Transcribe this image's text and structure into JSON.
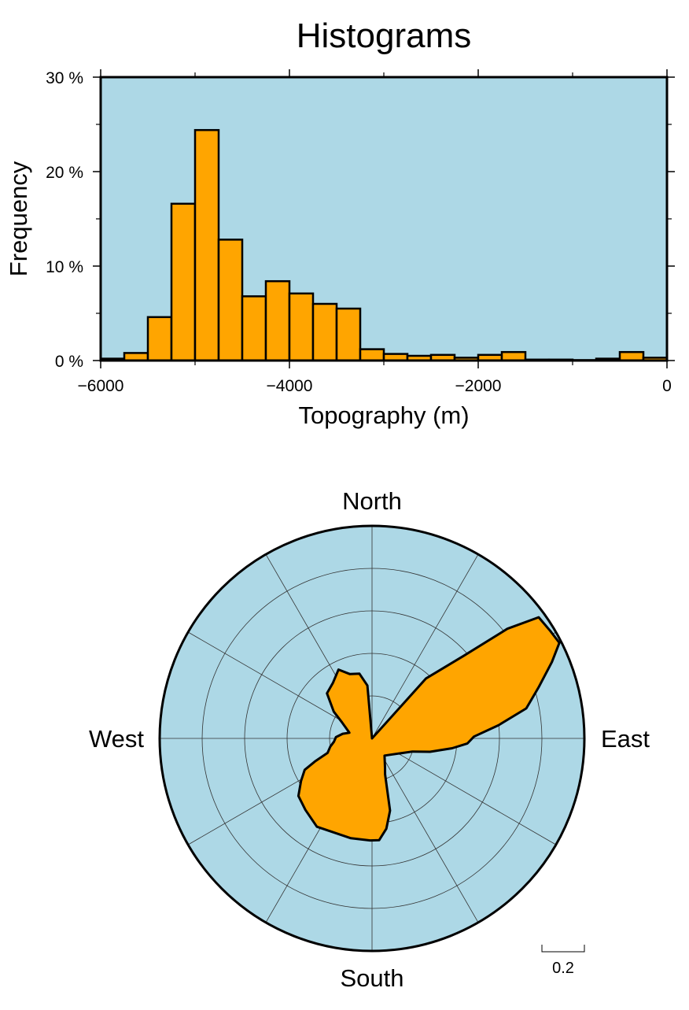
{
  "chart_data": [
    {
      "type": "bar",
      "title": "Histograms",
      "xlabel": "Topography (m)",
      "ylabel": "Frequency",
      "xlim": [
        -6000,
        0
      ],
      "ylim": [
        0,
        30
      ],
      "bin_width": 250,
      "x_ticks": [
        -6000,
        -4000,
        -2000,
        0
      ],
      "x_tick_labels": [
        "−6000",
        "−4000",
        "−2000",
        "0"
      ],
      "y_ticks": [
        0,
        10,
        20,
        30
      ],
      "y_tick_labels": [
        "0 %",
        "10 %",
        "20 %",
        "30 %"
      ],
      "bins": [
        {
          "x0": -6000,
          "x1": -5750,
          "value": 0.2
        },
        {
          "x0": -5750,
          "x1": -5500,
          "value": 0.8
        },
        {
          "x0": -5500,
          "x1": -5250,
          "value": 4.6
        },
        {
          "x0": -5250,
          "x1": -5000,
          "value": 16.6
        },
        {
          "x0": -5000,
          "x1": -4750,
          "value": 24.4
        },
        {
          "x0": -4750,
          "x1": -4500,
          "value": 12.8
        },
        {
          "x0": -4500,
          "x1": -4250,
          "value": 6.8
        },
        {
          "x0": -4250,
          "x1": -4000,
          "value": 8.4
        },
        {
          "x0": -4000,
          "x1": -3750,
          "value": 7.1
        },
        {
          "x0": -3750,
          "x1": -3500,
          "value": 6.0
        },
        {
          "x0": -3500,
          "x1": -3250,
          "value": 5.5
        },
        {
          "x0": -3250,
          "x1": -3000,
          "value": 1.2
        },
        {
          "x0": -3000,
          "x1": -2750,
          "value": 0.7
        },
        {
          "x0": -2750,
          "x1": -2500,
          "value": 0.5
        },
        {
          "x0": -2500,
          "x1": -2250,
          "value": 0.6
        },
        {
          "x0": -2250,
          "x1": -2000,
          "value": 0.3
        },
        {
          "x0": -2000,
          "x1": -1750,
          "value": 0.6
        },
        {
          "x0": -1750,
          "x1": -1500,
          "value": 0.9
        },
        {
          "x0": -1500,
          "x1": -1250,
          "value": 0.1
        },
        {
          "x0": -1250,
          "x1": -1000,
          "value": 0.1
        },
        {
          "x0": -1000,
          "x1": -750,
          "value": 0.05
        },
        {
          "x0": -750,
          "x1": -500,
          "value": 0.2
        },
        {
          "x0": -500,
          "x1": -250,
          "value": 0.9
        },
        {
          "x0": -250,
          "x1": 0,
          "value": 0.3
        }
      ],
      "colors": {
        "background": "#add8e6",
        "bar_fill": "#ffa500",
        "outline": "#000000"
      },
      "grid": false
    },
    {
      "type": "rose",
      "direction_labels": {
        "north": "North",
        "east": "East",
        "south": "South",
        "west": "West"
      },
      "r_max": 1.0,
      "ring_step": 0.2,
      "spoke_step_degrees": 30,
      "scale_bar_label": "0.2",
      "scale_bar_value": 0.2,
      "outline_azimuth_radius": [
        [
          0,
          0.0
        ],
        [
          42,
          0.38
        ],
        [
          48,
          0.58
        ],
        [
          51,
          0.82
        ],
        [
          54,
          0.97
        ],
        [
          59,
          0.98
        ],
        [
          63,
          0.99
        ],
        [
          67,
          0.92
        ],
        [
          73,
          0.82
        ],
        [
          79,
          0.74
        ],
        [
          84,
          0.6
        ],
        [
          89,
          0.48
        ],
        [
          93,
          0.45
        ],
        [
          97,
          0.38
        ],
        [
          103,
          0.28
        ],
        [
          108,
          0.2
        ],
        [
          144,
          0.1
        ],
        [
          156,
          0.15
        ],
        [
          160,
          0.18
        ],
        [
          166,
          0.35
        ],
        [
          171,
          0.43
        ],
        [
          176,
          0.48
        ],
        [
          181,
          0.48
        ],
        [
          192,
          0.48
        ],
        [
          212,
          0.49
        ],
        [
          223,
          0.46
        ],
        [
          232,
          0.44
        ],
        [
          239,
          0.39
        ],
        [
          245,
          0.35
        ],
        [
          248,
          0.29
        ],
        [
          252,
          0.22
        ],
        [
          259,
          0.2
        ],
        [
          265,
          0.18
        ],
        [
          272,
          0.17
        ],
        [
          279,
          0.14
        ],
        [
          284,
          0.11
        ],
        [
          298,
          0.16
        ],
        [
          305,
          0.22
        ],
        [
          315,
          0.3
        ],
        [
          325,
          0.32
        ],
        [
          334,
          0.36
        ],
        [
          341,
          0.32
        ],
        [
          349,
          0.31
        ],
        [
          355,
          0.25
        ],
        [
          360,
          0.0
        ]
      ],
      "colors": {
        "background": "#add8e6",
        "fill": "#ffa500",
        "outline": "#000000",
        "grid": "#333333"
      }
    }
  ]
}
